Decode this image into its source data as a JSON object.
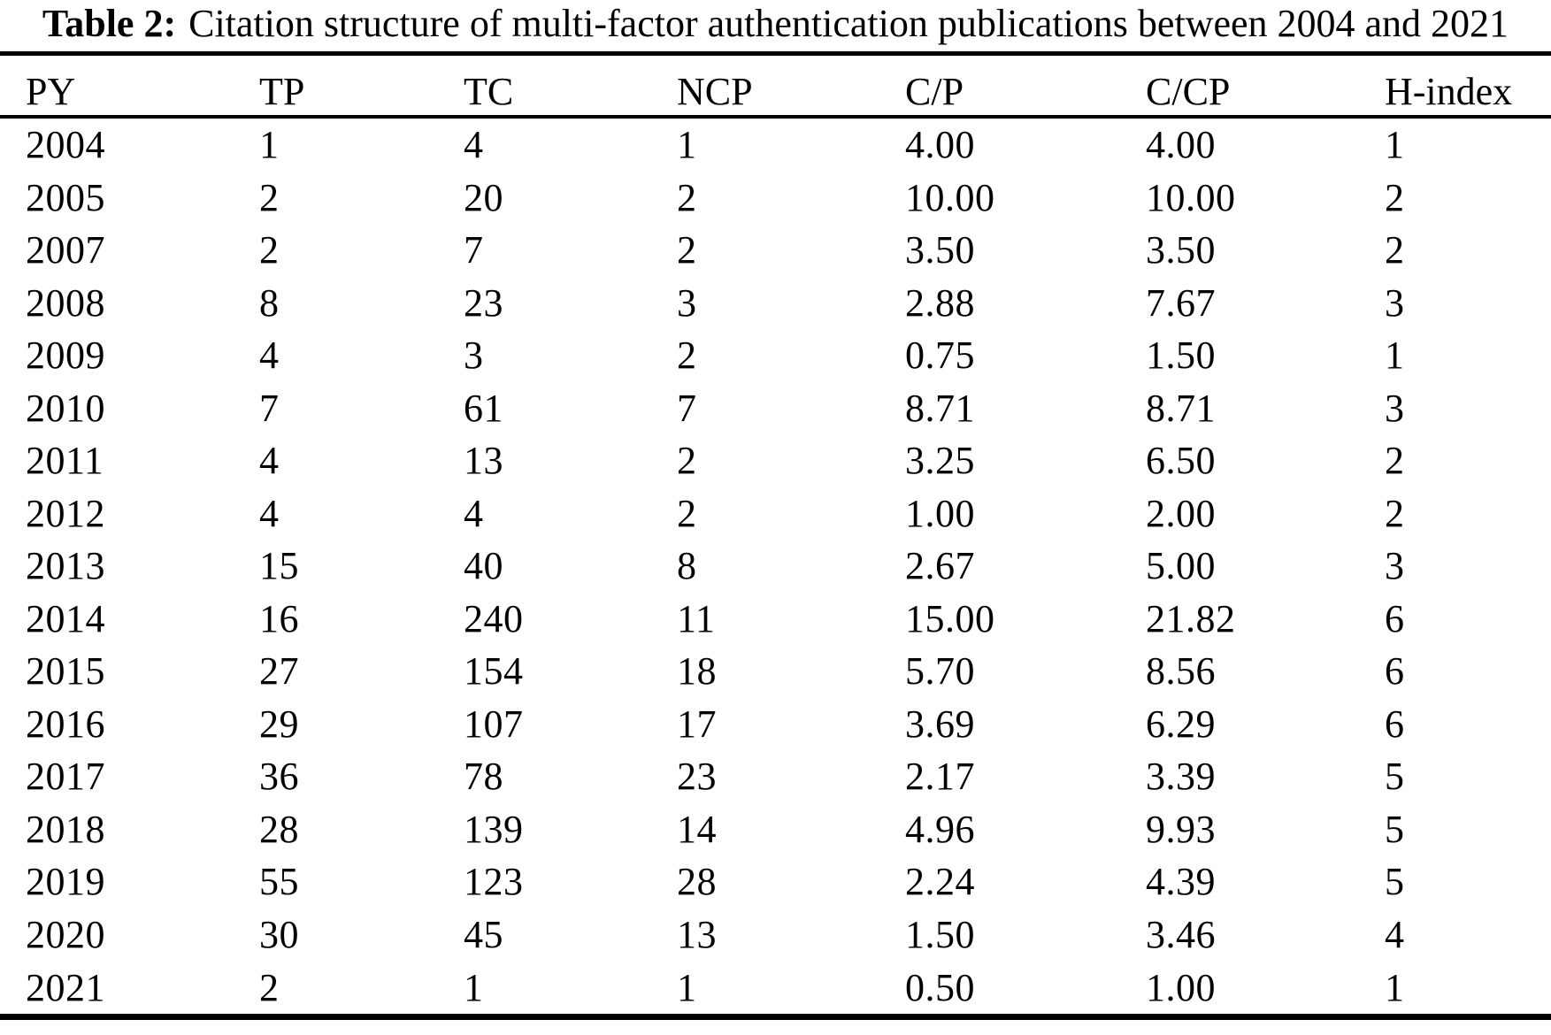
{
  "title": {
    "label": "Table 2:",
    "text": "Citation structure of multi-factor authentication publications between 2004 and 2021"
  },
  "chart_data": {
    "type": "table",
    "title": "Table 2: Citation structure of multi-factor authentication publications between 2004 and 2021",
    "columns": [
      "PY",
      "TP",
      "TC",
      "NCP",
      "C/P",
      "C/CP",
      "H-index"
    ],
    "rows": [
      [
        "2004",
        "1",
        "4",
        "1",
        "4.00",
        "4.00",
        "1"
      ],
      [
        "2005",
        "2",
        "20",
        "2",
        "10.00",
        "10.00",
        "2"
      ],
      [
        "2007",
        "2",
        "7",
        "2",
        "3.50",
        "3.50",
        "2"
      ],
      [
        "2008",
        "8",
        "23",
        "3",
        "2.88",
        "7.67",
        "3"
      ],
      [
        "2009",
        "4",
        "3",
        "2",
        "0.75",
        "1.50",
        "1"
      ],
      [
        "2010",
        "7",
        "61",
        "7",
        "8.71",
        "8.71",
        "3"
      ],
      [
        "2011",
        "4",
        "13",
        "2",
        "3.25",
        "6.50",
        "2"
      ],
      [
        "2012",
        "4",
        "4",
        "2",
        "1.00",
        "2.00",
        "2"
      ],
      [
        "2013",
        "15",
        "40",
        "8",
        "2.67",
        "5.00",
        "3"
      ],
      [
        "2014",
        "16",
        "240",
        "11",
        "15.00",
        "21.82",
        "6"
      ],
      [
        "2015",
        "27",
        "154",
        "18",
        "5.70",
        "8.56",
        "6"
      ],
      [
        "2016",
        "29",
        "107",
        "17",
        "3.69",
        "6.29",
        "6"
      ],
      [
        "2017",
        "36",
        "78",
        "23",
        "2.17",
        "3.39",
        "5"
      ],
      [
        "2018",
        "28",
        "139",
        "14",
        "4.96",
        "9.93",
        "5"
      ],
      [
        "2019",
        "55",
        "123",
        "28",
        "2.24",
        "4.39",
        "5"
      ],
      [
        "2020",
        "30",
        "45",
        "13",
        "1.50",
        "3.46",
        "4"
      ],
      [
        "2021",
        "2",
        "1",
        "1",
        "0.50",
        "1.00",
        "1"
      ]
    ]
  },
  "colors": {
    "text": "#000000",
    "background": "#ffffff",
    "rule": "#000000"
  }
}
